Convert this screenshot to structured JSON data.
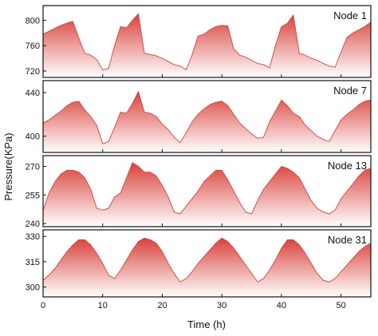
{
  "chart_data": {
    "type": "area",
    "xlabel": "Time (h)",
    "ylabel": "Pressure(KPa)",
    "xlim": [
      0,
      55
    ],
    "x_ticks": [
      0,
      10,
      20,
      30,
      40,
      50
    ],
    "fill_top_color": "#d9413a",
    "fill_bottom_color": "#ffffff",
    "line_color": "#c8463d",
    "grid": false,
    "panels": [
      {
        "name": "Node 1",
        "ylim": [
          715,
          818
        ],
        "y_ticks": [
          720,
          760,
          800
        ],
        "x": [
          0,
          1.5,
          3,
          4.5,
          5,
          6,
          7,
          8,
          9,
          10,
          11,
          12,
          13,
          14,
          15,
          16,
          17,
          18,
          19,
          20,
          21,
          22,
          23,
          24,
          25,
          26,
          27,
          28,
          29,
          30,
          31,
          32,
          33,
          34,
          35,
          36,
          37,
          38,
          39,
          40,
          41,
          42,
          43,
          44,
          45,
          46,
          47,
          48,
          49,
          50,
          51,
          52,
          53,
          54,
          55
        ],
        "y": [
          778,
          785,
          792,
          797,
          798,
          772,
          748,
          745,
          738,
          722,
          724,
          760,
          790,
          788,
          800,
          810,
          748,
          746,
          744,
          740,
          735,
          730,
          728,
          722,
          745,
          775,
          778,
          785,
          790,
          792,
          791,
          755,
          745,
          742,
          737,
          732,
          730,
          725,
          760,
          790,
          795,
          808,
          748,
          745,
          740,
          737,
          732,
          728,
          726,
          750,
          773,
          780,
          785,
          790,
          797
        ]
      },
      {
        "name": "Node 7",
        "ylim": [
          388,
          448
        ],
        "y_ticks": [
          400,
          440
        ],
        "x": [
          0,
          1,
          2,
          3,
          4,
          5,
          6,
          7,
          8,
          9,
          10,
          11,
          12,
          13,
          14,
          15,
          16,
          17,
          18,
          19,
          20,
          21,
          22,
          23,
          24,
          25,
          26,
          27,
          28,
          29,
          30,
          31,
          32,
          33,
          34,
          35,
          36,
          37,
          38,
          39,
          40,
          41,
          42,
          43,
          44,
          45,
          46,
          47,
          48,
          49,
          50,
          51,
          52,
          53,
          54,
          55
        ],
        "y": [
          412,
          415,
          419,
          423,
          428,
          431,
          432,
          424,
          418,
          410,
          393,
          395,
          408,
          422,
          421,
          430,
          441,
          422,
          421,
          418,
          411,
          406,
          399,
          394,
          403,
          413,
          420,
          425,
          429,
          431,
          432,
          428,
          420,
          412,
          407,
          402,
          398,
          399,
          413,
          423,
          433,
          428,
          421,
          418,
          410,
          405,
          400,
          397,
          395,
          405,
          415,
          420,
          424,
          429,
          432,
          433
        ]
      },
      {
        "name": "Node 13",
        "ylim": [
          240,
          274
        ],
        "y_ticks": [
          240,
          255,
          270
        ],
        "x": [
          0,
          1,
          2,
          3,
          4,
          5,
          6,
          7,
          8,
          9,
          10,
          11,
          12,
          13,
          14,
          15,
          16,
          17,
          18,
          19,
          20,
          21,
          22,
          23,
          24,
          25,
          26,
          27,
          28,
          29,
          30,
          31,
          32,
          33,
          34,
          35,
          36,
          37,
          38,
          39,
          40,
          41,
          42,
          43,
          44,
          45,
          46,
          47,
          48,
          49,
          50,
          51,
          52,
          53,
          54,
          55
        ],
        "y": [
          247,
          256,
          262,
          266,
          268,
          268,
          267,
          264,
          258,
          248,
          247,
          248,
          254,
          256,
          264,
          272,
          270,
          267,
          267,
          265,
          260,
          254,
          246,
          245,
          249,
          253,
          257,
          262,
          265,
          268,
          268,
          263,
          257,
          251,
          246,
          245,
          252,
          258,
          262,
          266,
          270,
          269,
          267,
          264,
          258,
          252,
          248,
          246,
          245,
          247,
          253,
          257,
          261,
          265,
          268,
          269
        ]
      },
      {
        "name": "Node 31",
        "ylim": [
          296,
          332
        ],
        "y_ticks": [
          300,
          315,
          330
        ],
        "x": [
          0,
          1,
          2,
          3,
          4,
          5,
          6,
          7,
          8,
          9,
          10,
          11,
          12,
          13,
          14,
          15,
          16,
          17,
          18,
          19,
          20,
          21,
          22,
          23,
          24,
          25,
          26,
          27,
          28,
          29,
          30,
          31,
          32,
          33,
          34,
          35,
          36,
          37,
          38,
          39,
          40,
          41,
          42,
          43,
          44,
          45,
          46,
          47,
          48,
          49,
          50,
          51,
          52,
          53,
          54,
          55
        ],
        "y": [
          304,
          307,
          311,
          316,
          321,
          325,
          328,
          328,
          325,
          320,
          314,
          307,
          305,
          310,
          316,
          322,
          327,
          329,
          328,
          326,
          321,
          314,
          308,
          303,
          305,
          309,
          314,
          318,
          322,
          326,
          329,
          327,
          323,
          318,
          313,
          308,
          303,
          305,
          310,
          316,
          323,
          328,
          328,
          325,
          320,
          314,
          308,
          304,
          303,
          305,
          309,
          313,
          317,
          321,
          324,
          326
        ]
      }
    ]
  }
}
